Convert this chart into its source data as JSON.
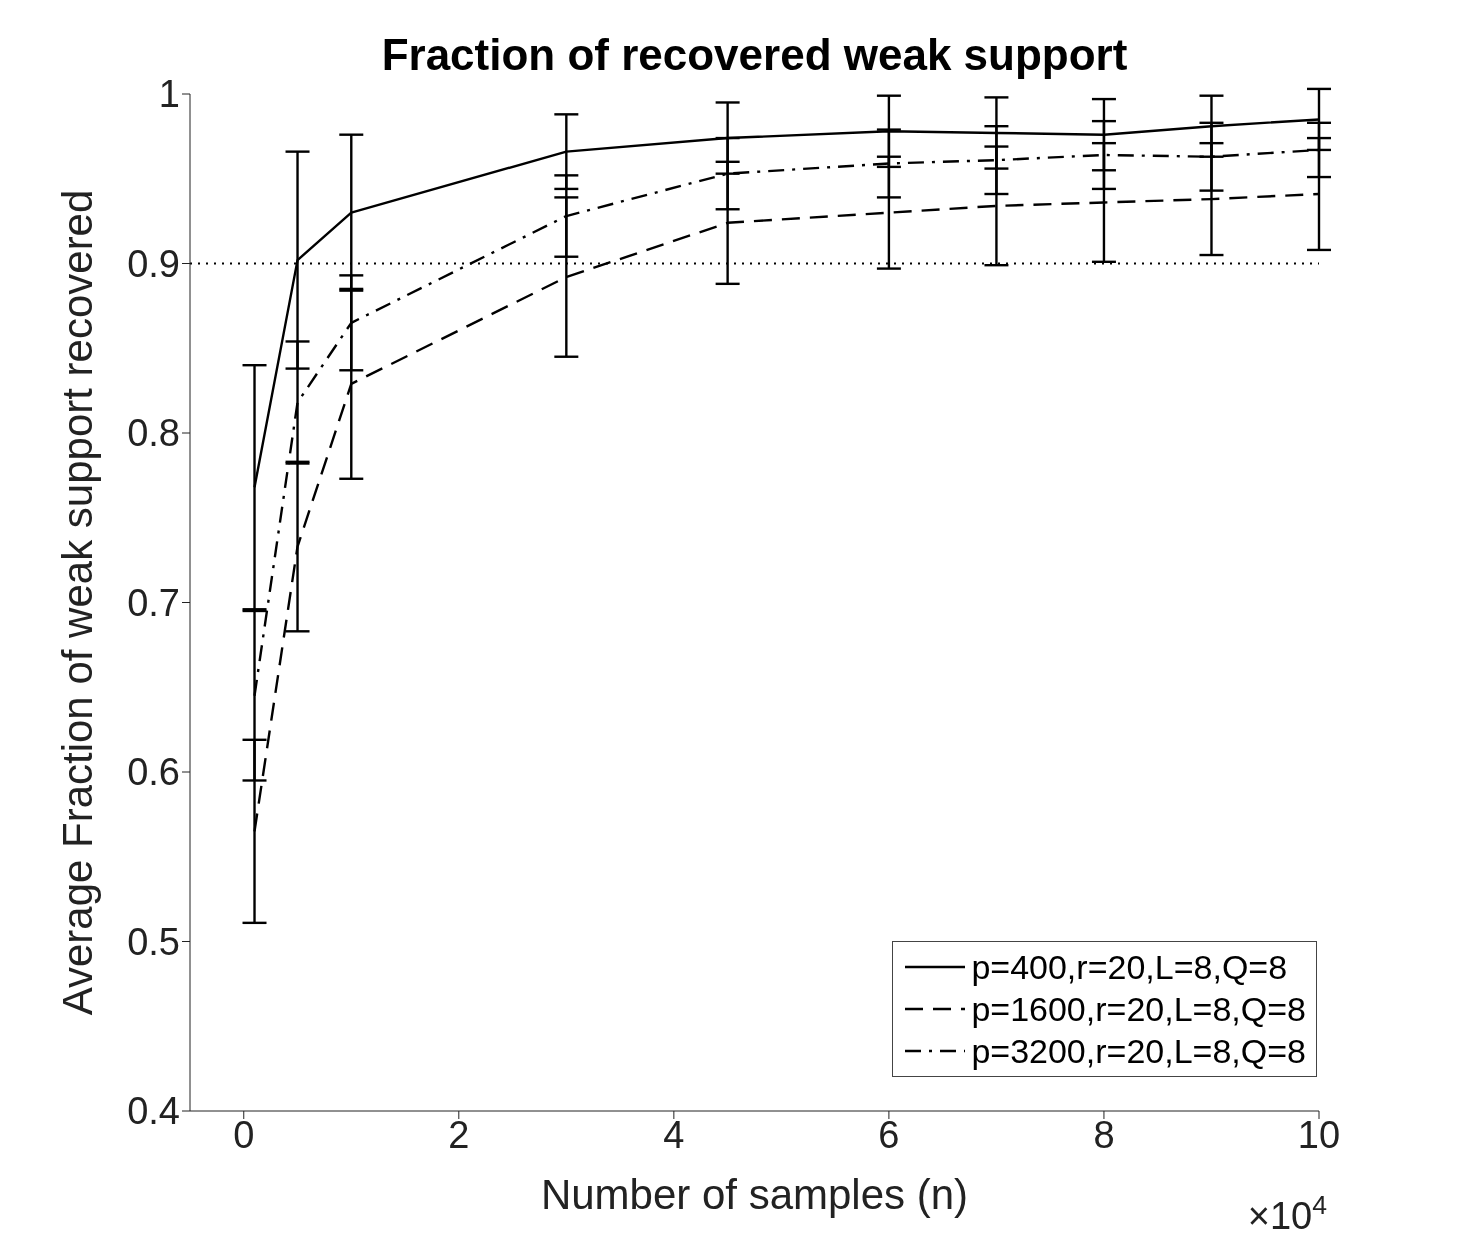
{
  "chart_data": {
    "type": "line",
    "title": "Fraction of recovered weak support",
    "xlabel": "Number of samples (n)",
    "ylabel": "Average Fraction of weak support recovered",
    "annotations": [
      "×10$^{4}$"
    ],
    "x": [
      0.1,
      0.5,
      1,
      3,
      4.5,
      6,
      7,
      8,
      9,
      10
    ],
    "series": [
      {
        "name": "p=400,r=20,L=8,Q=8",
        "color": "#000000",
        "line_style": "solid",
        "values": [
          0.768,
          0.902,
          0.93,
          0.966,
          0.974,
          0.978,
          0.977,
          0.976,
          0.981,
          0.985
        ],
        "errors": [
          0.072,
          0.064,
          0.046,
          0.022,
          0.021,
          0.021,
          0.021,
          0.021,
          0.018,
          0.018
        ]
      },
      {
        "name": "p=1600,r=20,L=8,Q=8",
        "color": "#000000",
        "line_style": "dashed",
        "values": [
          0.565,
          0.733,
          0.829,
          0.892,
          0.924,
          0.93,
          0.934,
          0.936,
          0.938,
          0.941
        ],
        "errors": [
          0.054,
          0.05,
          0.056,
          0.047,
          0.036,
          0.033,
          0.035,
          0.035,
          0.033,
          0.033
        ]
      },
      {
        "name": "p=3200,r=20,L=8,Q=8",
        "color": "#000000",
        "line_style": "dashdot",
        "values": [
          0.645,
          0.818,
          0.865,
          0.928,
          0.953,
          0.959,
          0.961,
          0.964,
          0.963,
          0.967
        ],
        "errors": [
          0.05,
          0.036,
          0.028,
          0.024,
          0.021,
          0.02,
          0.02,
          0.02,
          0.02,
          0.016
        ]
      }
    ],
    "ref_lines": [
      {
        "axis": "y",
        "value": 0.9,
        "color": "#000000",
        "line_style": "dotted"
      }
    ],
    "xlim": [
      -0.5,
      10
    ],
    "xticks": [
      0,
      2,
      4,
      6,
      8,
      10
    ],
    "ylim": [
      0.4,
      1
    ],
    "yticks": [
      {
        "value": 0.4,
        "label": "0.4"
      },
      {
        "value": 0.5,
        "label": "0.5"
      },
      {
        "value": 0.6,
        "label": "0.6"
      },
      {
        "value": 0.7,
        "label": "0.7"
      },
      {
        "value": 0.8,
        "label": "0.8"
      },
      {
        "value": 0.9,
        "label": "0.9"
      },
      {
        "value": 1,
        "label": "1"
      }
    ],
    "grid": false,
    "legend": "bottom right",
    "marker": "none"
  }
}
